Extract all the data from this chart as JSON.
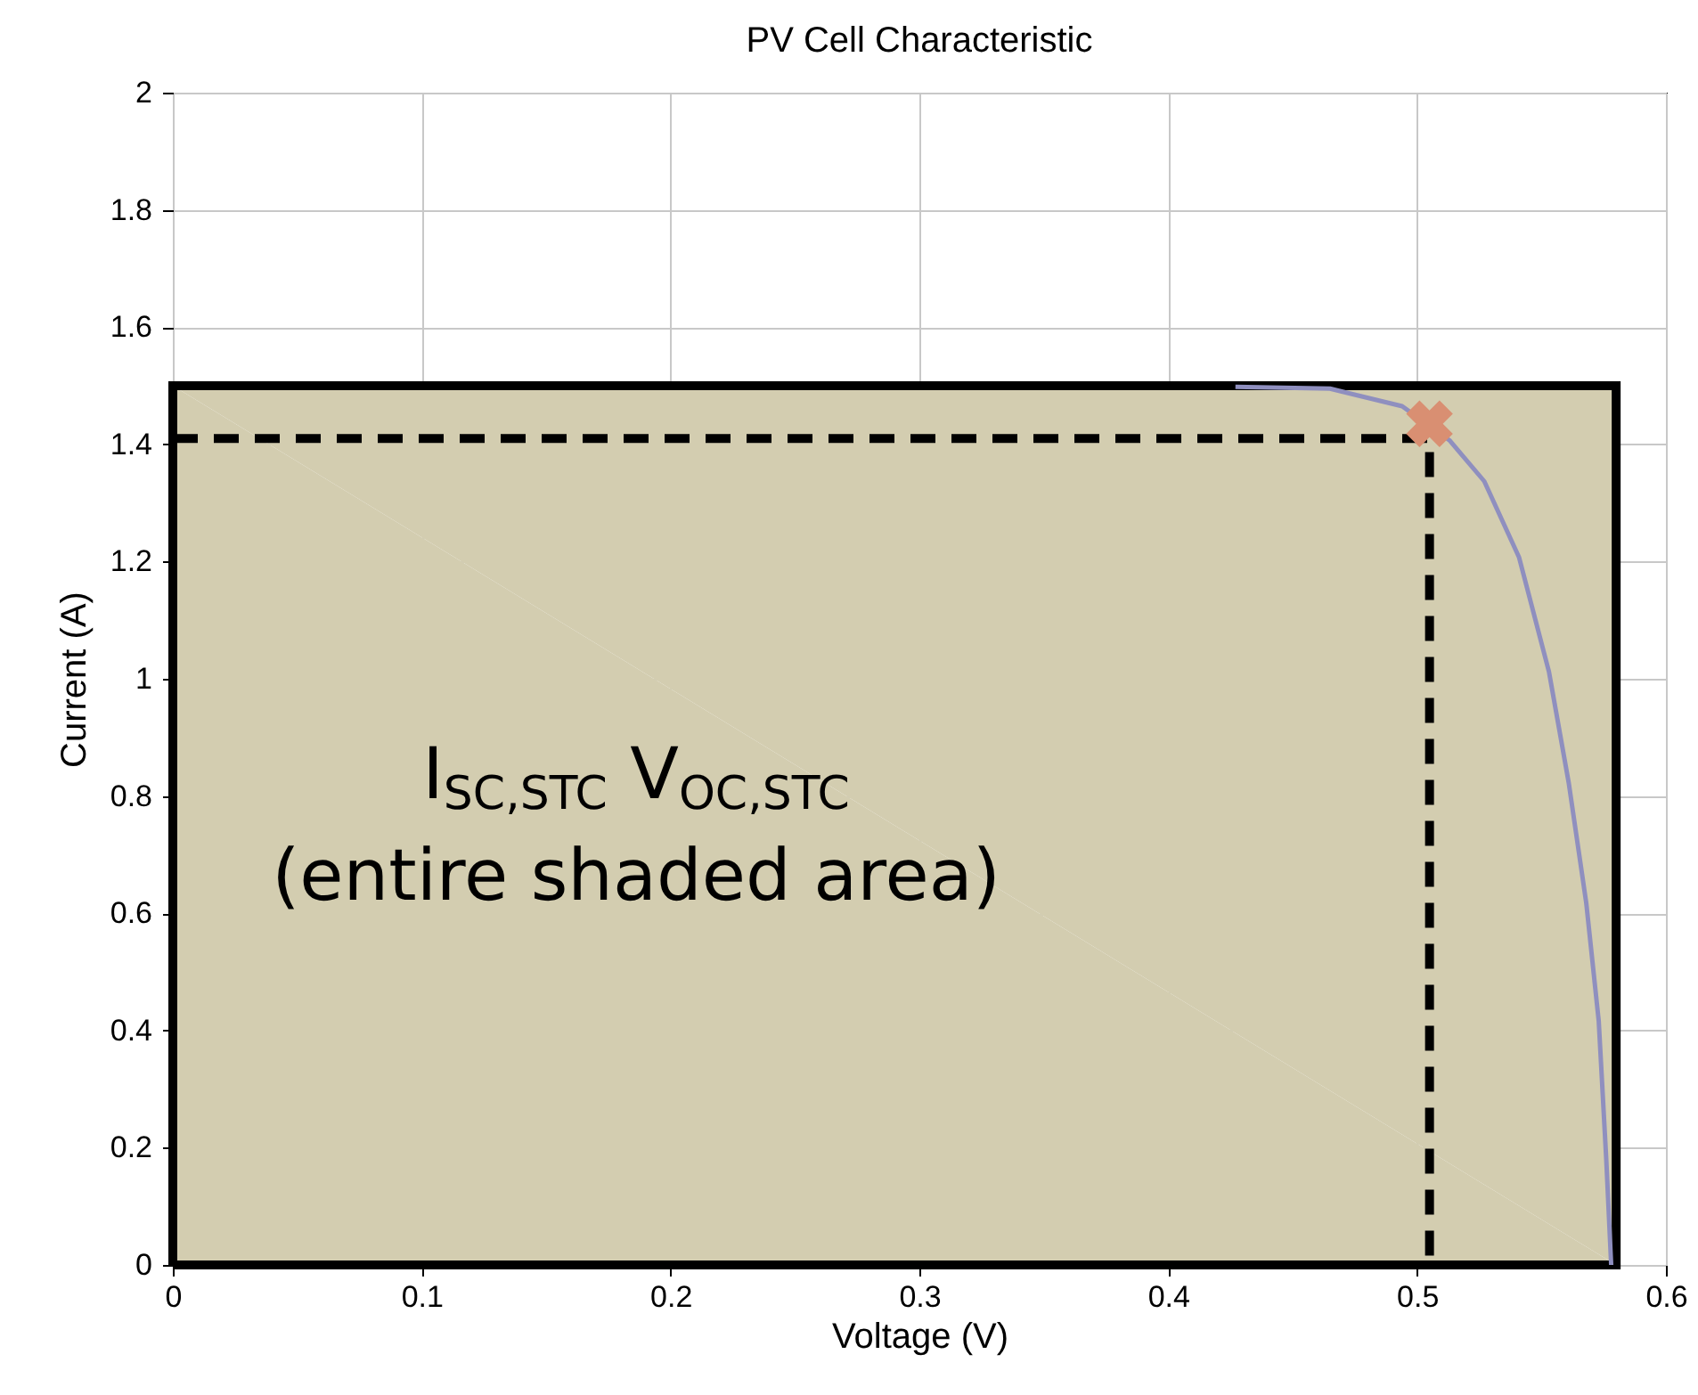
{
  "chart_data": {
    "type": "line",
    "title": "PV Cell Characteristic",
    "xlabel": "Voltage (V)",
    "ylabel": "Current (A)",
    "xlim": [
      0,
      0.6
    ],
    "xticks": [
      0,
      0.1,
      0.2,
      0.3,
      0.4,
      0.5,
      0.6
    ],
    "ylim": [
      0,
      2
    ],
    "yticks": [
      0,
      0.2,
      0.4,
      0.6,
      0.8,
      1,
      1.2,
      1.4,
      1.6,
      1.8,
      2
    ],
    "grid": true,
    "series": [
      {
        "type": "area",
        "color": "#d3cdb0",
        "x": [
          0,
          0.58
        ],
        "values": [
          1.5,
          1.5
        ]
      },
      {
        "color": "#8f8fbf",
        "x": [
          0.427,
          0.465,
          0.494,
          0.513,
          0.527,
          0.541,
          0.553,
          0.561,
          0.568,
          0.573,
          0.576,
          0.578
        ],
        "values": [
          1.498,
          1.495,
          1.465,
          1.407,
          1.337,
          1.207,
          1.012,
          0.821,
          0.617,
          0.416,
          0.182,
          0
        ]
      },
      {
        "type": "line",
        "color": "#000000",
        "line_style": "dashed",
        "x": [
          0,
          0.505,
          0.505
        ],
        "values": [
          1.41,
          1.41,
          0
        ]
      },
      {
        "type": "scatter",
        "color": "#d98f72",
        "marker": "cross",
        "x": [
          0.505
        ],
        "values": [
          1.435
        ]
      }
    ],
    "annotations": [
      "I$_{SC,STC}$ V$_{OC,STC}$",
      "(entire shaded area)"
    ]
  }
}
